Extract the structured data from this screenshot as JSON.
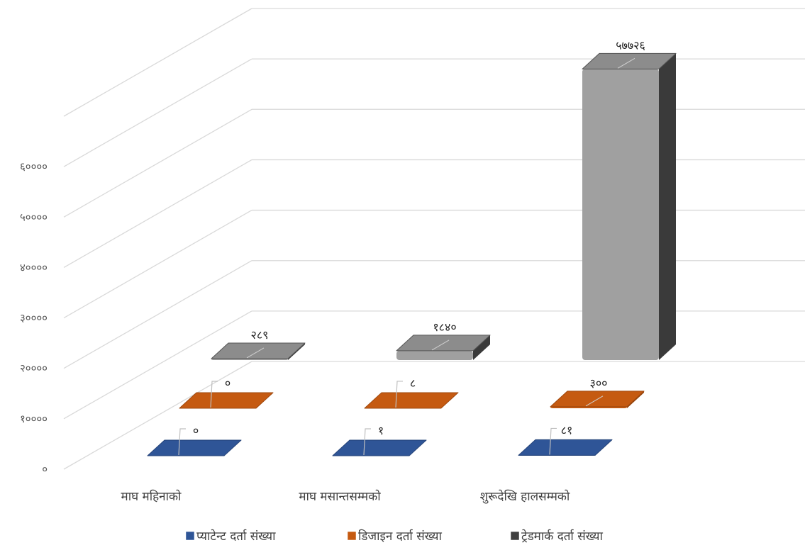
{
  "chart_data": {
    "type": "bar",
    "title": "",
    "xlabel": "",
    "ylabel": "",
    "ylim": [
      0,
      70000
    ],
    "yticks": [
      0,
      10000,
      20000,
      30000,
      40000,
      50000,
      60000
    ],
    "ytick_labels": [
      "०",
      "१००००",
      "२००००",
      "३००००",
      "४००००",
      "५००००",
      "६००००"
    ],
    "categories": [
      "माघ महिनाको",
      "माघ मसान्तसम्मको",
      "शुरूदेखि हालसम्मको"
    ],
    "grid": true,
    "legend_position": "bottom",
    "series": [
      {
        "name": "प्याटेन्ट दर्ता संख्या",
        "color": "#2f5597",
        "values": [
          0,
          1,
          81
        ],
        "labels": [
          "०",
          "१",
          "८१"
        ]
      },
      {
        "name": "डिजाइन दर्ता संख्या",
        "color": "#c55a11",
        "values": [
          0,
          8,
          300
        ],
        "labels": [
          "०",
          "८",
          "३००"
        ]
      },
      {
        "name": "ट्रेडमार्क दर्ता संख्या",
        "color": "#3f3f3f",
        "values": [
          289,
          1840,
          57726
        ],
        "labels": [
          "२८९",
          "१८४०",
          "५७७२६"
        ]
      }
    ]
  }
}
